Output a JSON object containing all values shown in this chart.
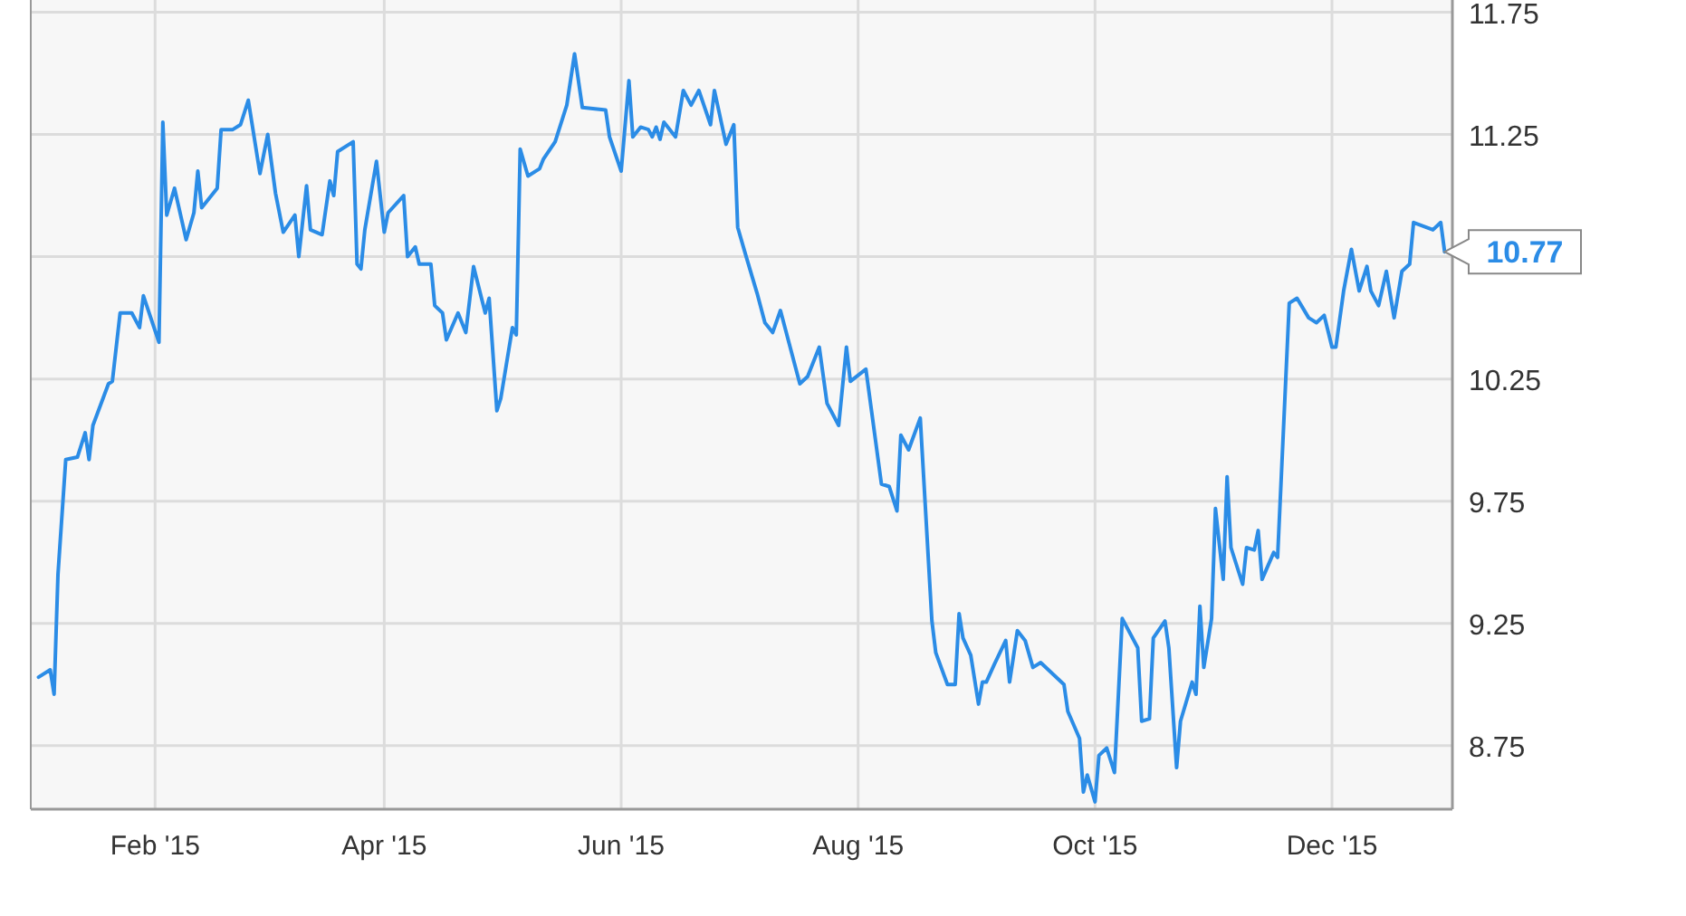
{
  "chart_data": {
    "type": "line",
    "xlim": [
      "2014-12-31",
      "2016-01-01"
    ],
    "ylim": [
      8.49,
      11.8
    ],
    "xticks": [
      {
        "value": "2015-02-01",
        "label": "Feb '15"
      },
      {
        "value": "2015-04-01",
        "label": "Apr '15"
      },
      {
        "value": "2015-06-01",
        "label": "Jun '15"
      },
      {
        "value": "2015-08-01",
        "label": "Aug '15"
      },
      {
        "value": "2015-10-01",
        "label": "Oct '15"
      },
      {
        "value": "2015-12-01",
        "label": "Dec '15"
      }
    ],
    "yticks": [
      8.75,
      9.25,
      9.75,
      10.25,
      {
        "value": 10.75,
        "label": null
      },
      11.25,
      11.75
    ],
    "grid": true,
    "marker": "none",
    "line_style": "solid",
    "annotations": [
      {
        "text": "10.77",
        "x": "2015-12-30",
        "y": 10.77
      }
    ],
    "series": [
      {
        "color": "#2b8ce6",
        "x": [
          "2015-01-02",
          "2015-01-05",
          "2015-01-06",
          "2015-01-07",
          "2015-01-09",
          "2015-01-12",
          "2015-01-14",
          "2015-01-15",
          "2015-01-16",
          "2015-01-20",
          "2015-01-21",
          "2015-01-23",
          "2015-01-26",
          "2015-01-28",
          "2015-01-29",
          "2015-02-02",
          "2015-02-03",
          "2015-02-04",
          "2015-02-06",
          "2015-02-09",
          "2015-02-11",
          "2015-02-12",
          "2015-02-13",
          "2015-02-17",
          "2015-02-18",
          "2015-02-21",
          "2015-02-23",
          "2015-02-25",
          "2015-02-28",
          "2015-03-02",
          "2015-03-04",
          "2015-03-06",
          "2015-03-09",
          "2015-03-10",
          "2015-03-12",
          "2015-03-13",
          "2015-03-16",
          "2015-03-18",
          "2015-03-19",
          "2015-03-20",
          "2015-03-24",
          "2015-03-25",
          "2015-03-26",
          "2015-03-27",
          "2015-03-30",
          "2015-04-01",
          "2015-04-02",
          "2015-04-06",
          "2015-04-07",
          "2015-04-09",
          "2015-04-10",
          "2015-04-13",
          "2015-04-14",
          "2015-04-16",
          "2015-04-17",
          "2015-04-20",
          "2015-04-22",
          "2015-04-24",
          "2015-04-27",
          "2015-04-28",
          "2015-04-30",
          "2015-05-01",
          "2015-05-04",
          "2015-05-05",
          "2015-05-06",
          "2015-05-08",
          "2015-05-11",
          "2015-05-12",
          "2015-05-15",
          "2015-05-18",
          "2015-05-20",
          "2015-05-22",
          "2015-05-28",
          "2015-05-29",
          "2015-06-01",
          "2015-06-03",
          "2015-06-04",
          "2015-06-06",
          "2015-06-08",
          "2015-06-09",
          "2015-06-10",
          "2015-06-11",
          "2015-06-12",
          "2015-06-15",
          "2015-06-17",
          "2015-06-19",
          "2015-06-21",
          "2015-06-24",
          "2015-06-25",
          "2015-06-28",
          "2015-06-30",
          "2015-07-01",
          "2015-07-03",
          "2015-07-06",
          "2015-07-08",
          "2015-07-10",
          "2015-07-12",
          "2015-07-17",
          "2015-07-19",
          "2015-07-22",
          "2015-07-24",
          "2015-07-27",
          "2015-07-29",
          "2015-07-30",
          "2015-08-03",
          "2015-08-07",
          "2015-08-09",
          "2015-08-11",
          "2015-08-12",
          "2015-08-14",
          "2015-08-17",
          "2015-08-20",
          "2015-08-21",
          "2015-08-24",
          "2015-08-26",
          "2015-08-27",
          "2015-08-28",
          "2015-08-30",
          "2015-09-01",
          "2015-09-02",
          "2015-09-03",
          "2015-09-05",
          "2015-09-08",
          "2015-09-09",
          "2015-09-11",
          "2015-09-13",
          "2015-09-15",
          "2015-09-17",
          "2015-09-23",
          "2015-09-24",
          "2015-09-27",
          "2015-09-28",
          "2015-09-29",
          "2015-10-01",
          "2015-10-02",
          "2015-10-04",
          "2015-10-06",
          "2015-10-08",
          "2015-10-12",
          "2015-10-13",
          "2015-10-15",
          "2015-10-16",
          "2015-10-19",
          "2015-10-20",
          "2015-10-22",
          "2015-10-23",
          "2015-10-26",
          "2015-10-27",
          "2015-10-28",
          "2015-10-29",
          "2015-10-31",
          "2015-11-01",
          "2015-11-03",
          "2015-11-04",
          "2015-11-05",
          "2015-11-08",
          "2015-11-09",
          "2015-11-11",
          "2015-11-12",
          "2015-11-13",
          "2015-11-16",
          "2015-11-17",
          "2015-11-20",
          "2015-11-22",
          "2015-11-25",
          "2015-11-27",
          "2015-11-29",
          "2015-12-01",
          "2015-12-02",
          "2015-12-04",
          "2015-12-06",
          "2015-12-08",
          "2015-12-10",
          "2015-12-11",
          "2015-12-13",
          "2015-12-15",
          "2015-12-17",
          "2015-12-19",
          "2015-12-21",
          "2015-12-22",
          "2015-12-27",
          "2015-12-29",
          "2015-12-30"
        ],
        "values": [
          9.03,
          9.06,
          8.96,
          9.45,
          9.92,
          9.93,
          10.03,
          9.92,
          10.06,
          10.23,
          10.24,
          10.52,
          10.52,
          10.46,
          10.59,
          10.4,
          11.3,
          10.92,
          11.03,
          10.82,
          10.93,
          11.1,
          10.95,
          11.03,
          11.27,
          11.27,
          11.29,
          11.39,
          11.09,
          11.25,
          11.01,
          10.85,
          10.92,
          10.75,
          11.04,
          10.86,
          10.84,
          11.06,
          11.0,
          11.18,
          11.22,
          10.72,
          10.7,
          10.86,
          11.14,
          10.85,
          10.93,
          11.0,
          10.75,
          10.79,
          10.72,
          10.72,
          10.55,
          10.52,
          10.41,
          10.52,
          10.44,
          10.71,
          10.52,
          10.58,
          10.12,
          10.17,
          10.46,
          10.43,
          11.19,
          11.08,
          11.11,
          11.15,
          11.22,
          11.37,
          11.58,
          11.36,
          11.35,
          11.24,
          11.1,
          11.47,
          11.24,
          11.28,
          11.27,
          11.24,
          11.28,
          11.23,
          11.3,
          11.24,
          11.43,
          11.37,
          11.43,
          11.29,
          11.43,
          11.21,
          11.29,
          10.87,
          10.76,
          10.6,
          10.48,
          10.44,
          10.53,
          10.23,
          10.26,
          10.38,
          10.15,
          10.06,
          10.38,
          10.24,
          10.29,
          9.82,
          9.81,
          9.71,
          10.02,
          9.96,
          10.09,
          9.26,
          9.13,
          9.0,
          9.0,
          9.29,
          9.19,
          9.12,
          8.92,
          9.01,
          9.01,
          9.08,
          9.18,
          9.01,
          9.22,
          9.18,
          9.07,
          9.09,
          9.0,
          8.89,
          8.78,
          8.56,
          8.63,
          8.52,
          8.71,
          8.74,
          8.64,
          9.27,
          9.15,
          8.85,
          8.86,
          9.19,
          9.26,
          9.15,
          8.66,
          8.85,
          9.01,
          8.96,
          9.32,
          9.07,
          9.27,
          9.72,
          9.43,
          9.85,
          9.56,
          9.41,
          9.56,
          9.55,
          9.63,
          9.43,
          9.54,
          9.52,
          10.56,
          10.58,
          10.5,
          10.48,
          10.51,
          10.38,
          10.38,
          10.61,
          10.78,
          10.61,
          10.71,
          10.61,
          10.55,
          10.69,
          10.5,
          10.69,
          10.72,
          10.89,
          10.86,
          10.89,
          10.77
        ]
      }
    ]
  }
}
